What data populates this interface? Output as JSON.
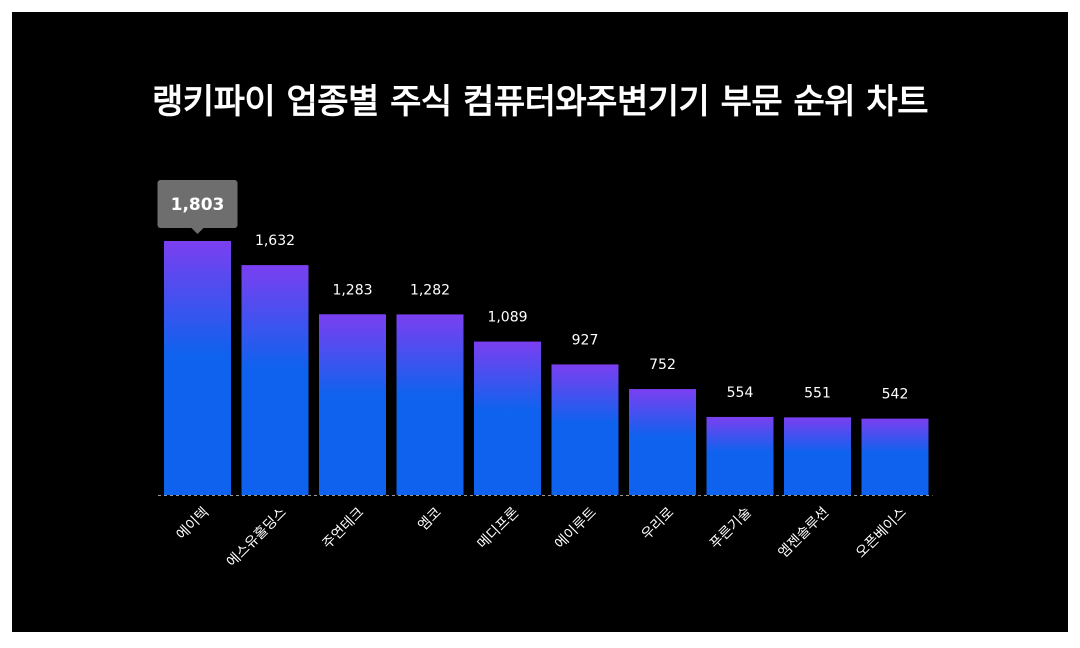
{
  "chart_data": {
    "type": "bar",
    "title": "랭키파이 업종별 주식 컴퓨터와주변기기 부문 순위 차트",
    "categories": [
      "에이텍",
      "에스유홀딩스",
      "주연테크",
      "엠코",
      "메디프론",
      "에이루트",
      "우리로",
      "푸른기술",
      "엠젠솔루션",
      "오픈베이스"
    ],
    "values": [
      1803,
      1632,
      1283,
      1282,
      1089,
      927,
      752,
      554,
      551,
      542
    ],
    "value_labels": [
      "1,803",
      "1,632",
      "1,283",
      "1,282",
      "1,089",
      "927",
      "752",
      "554",
      "551",
      "542"
    ],
    "highlight_index": 0,
    "xlabel": "",
    "ylabel": "",
    "ylim": [
      0,
      1803
    ],
    "grid": false,
    "legend": "none",
    "colors": {
      "background": "#000000",
      "bar_top": "#7b3ff0",
      "bar_bottom": "#0f62ee",
      "tooltip": "#6e6e6e",
      "baseline": "#9a9a9a",
      "text": "#ffffff"
    }
  }
}
